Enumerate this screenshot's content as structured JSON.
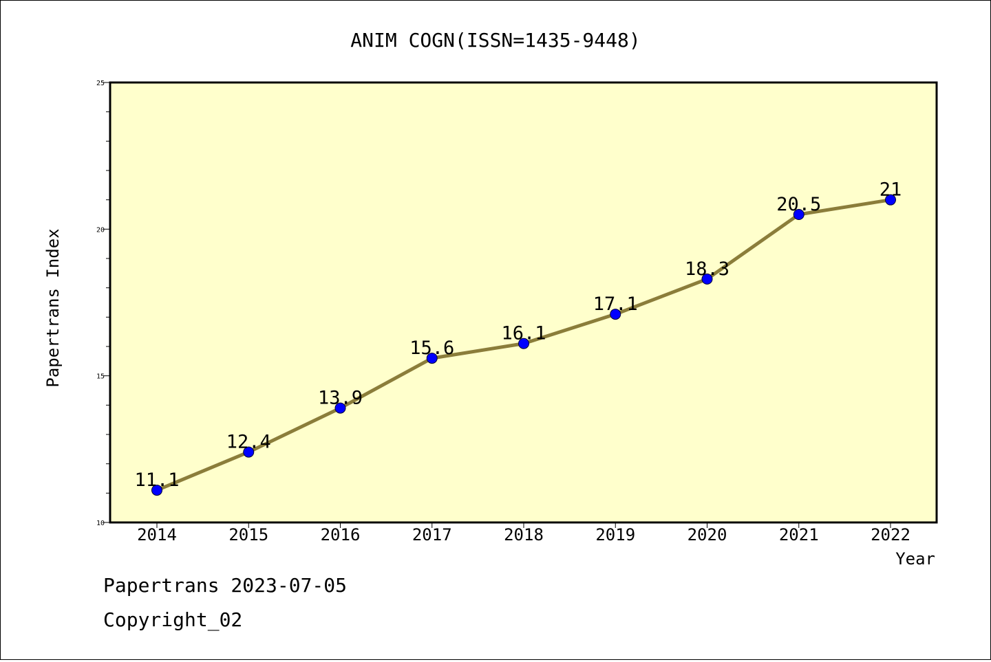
{
  "chart_data": {
    "type": "line",
    "title": "ANIM COGN(ISSN=1435-9448)",
    "xlabel": "Year",
    "ylabel": "Papertrans Index",
    "x": [
      "2014",
      "2015",
      "2016",
      "2017",
      "2018",
      "2019",
      "2020",
      "2021",
      "2022"
    ],
    "series": [
      {
        "values": [
          11.1,
          12.4,
          13.9,
          15.6,
          16.1,
          17.1,
          18.3,
          20.5,
          21
        ],
        "labels": [
          "11.1",
          "12.4",
          "13.9",
          "15.6",
          "16.1",
          "17.1",
          "18.3",
          "20.5",
          "21"
        ]
      }
    ],
    "ylim": [
      10,
      25
    ],
    "yticks": [
      "10",
      "15",
      "20",
      "25"
    ],
    "grid": false,
    "colors": {
      "plot_background": "#ffffcc",
      "line": "#8b7d3a",
      "marker": "#0000ff"
    }
  },
  "footer": {
    "line1": "Papertrans 2023-07-05",
    "line2": "Copyright_02"
  }
}
